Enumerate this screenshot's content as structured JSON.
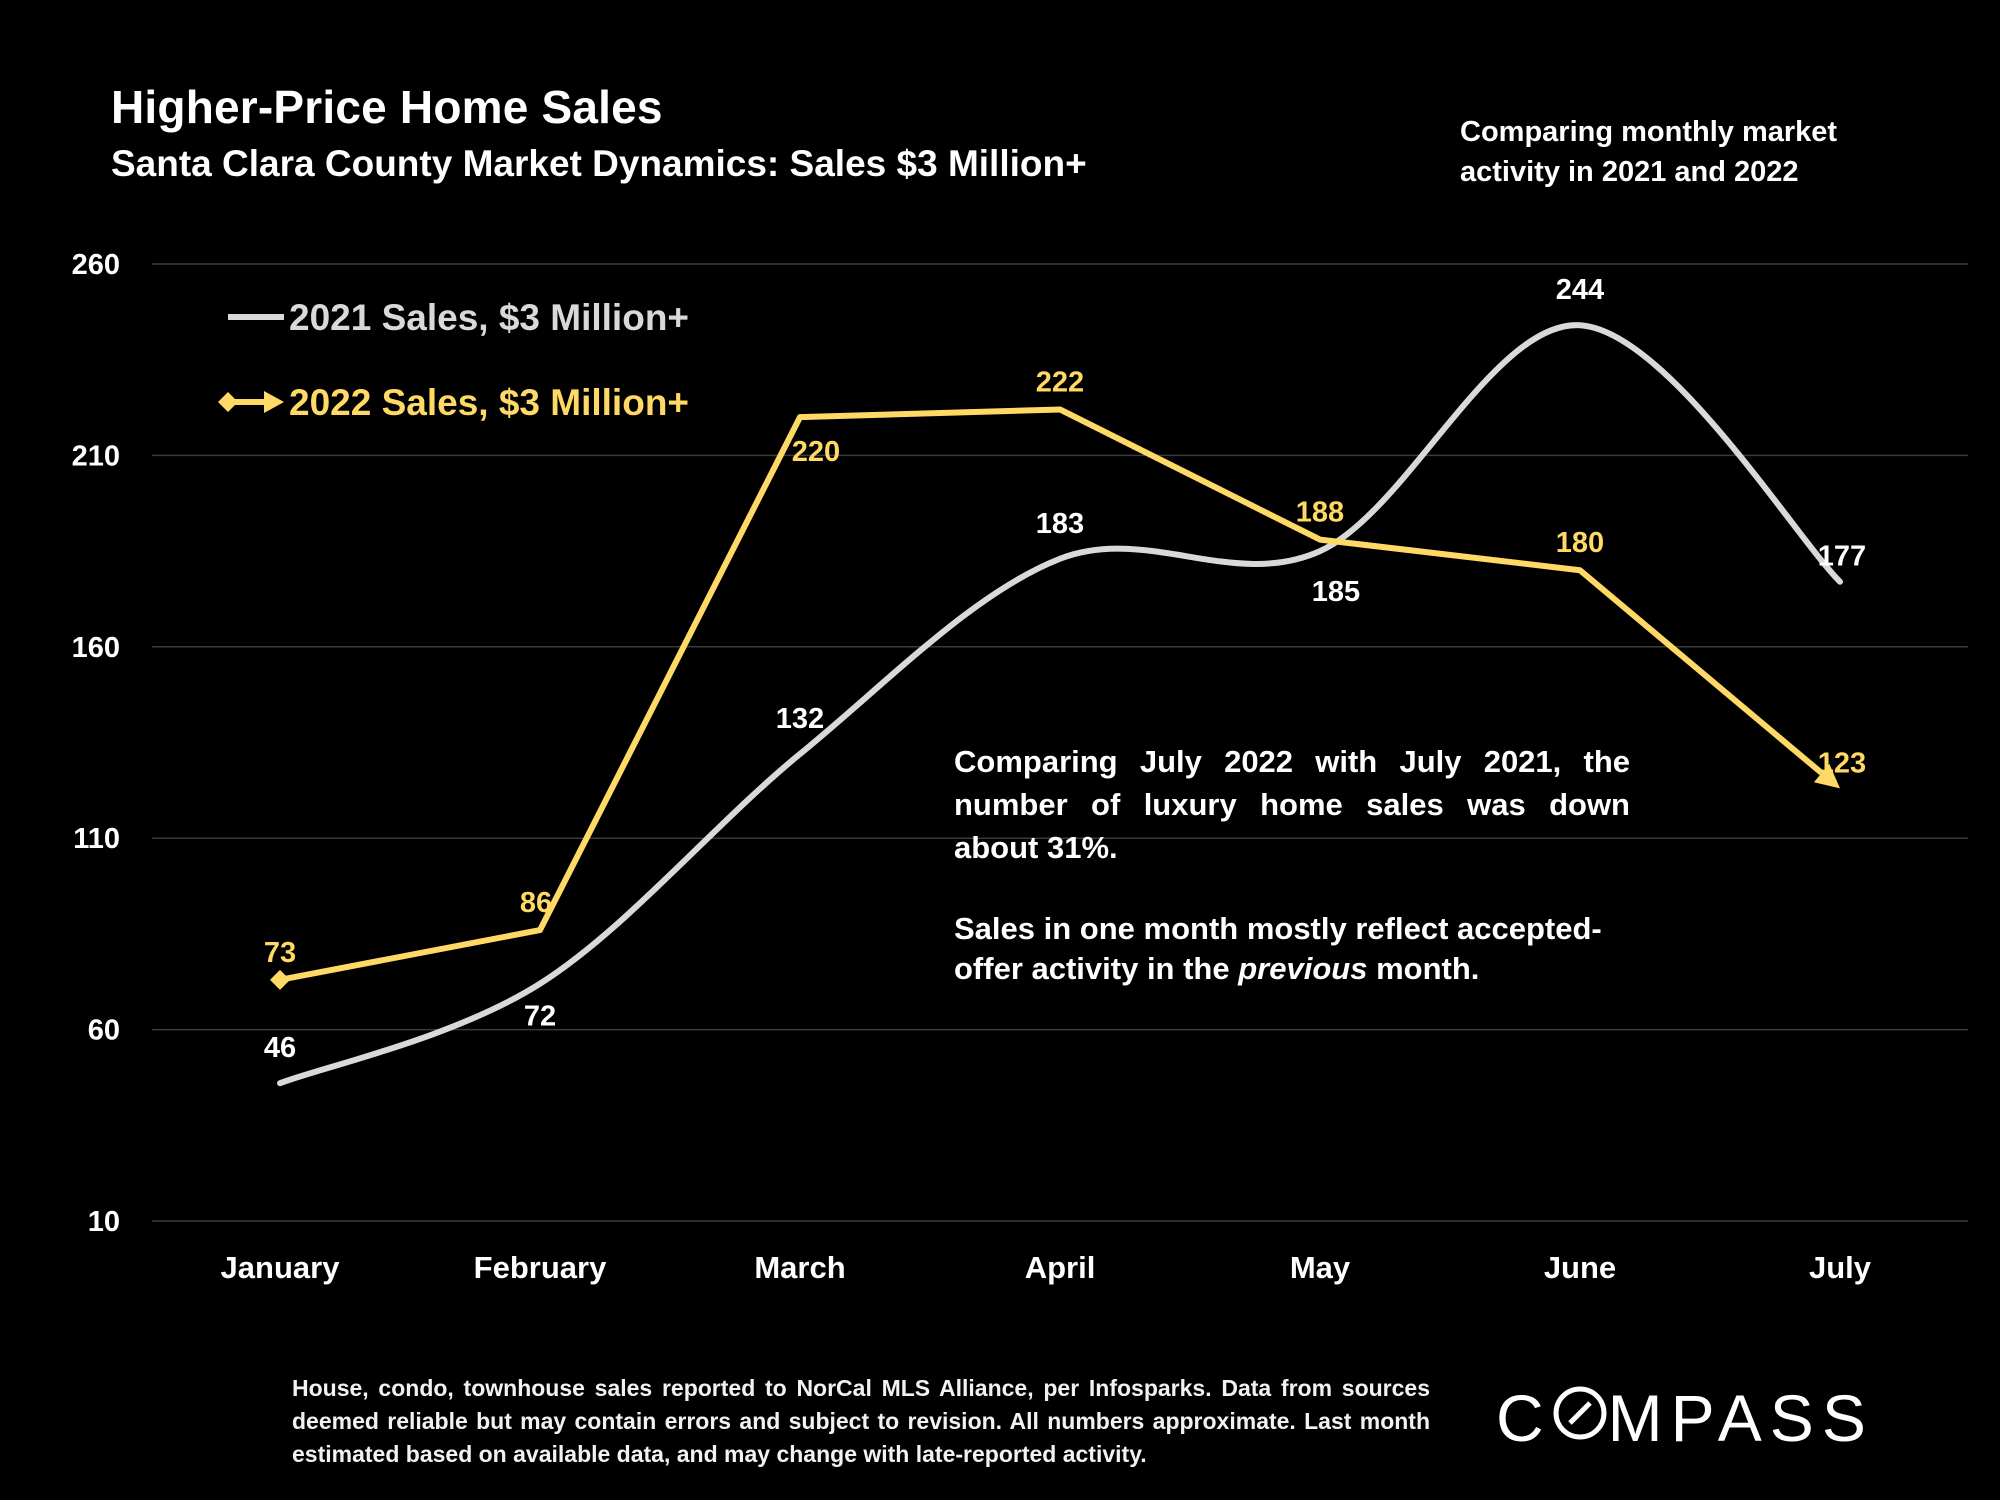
{
  "title": "Higher-Price Home Sales",
  "subtitle": "Santa Clara County Market Dynamics: Sales $3 Million+",
  "side_note": "Comparing monthly market activity in 2021 and 2022",
  "annotation": {
    "p1": "Comparing July 2022 with July 2021, the number of luxury home sales was down about 31%.",
    "p2_before": "Sales in one month mostly reflect accepted-offer activity in the ",
    "p2_em": "previous",
    "p2_after": " month."
  },
  "footnote": "House, condo, townhouse sales reported to NorCal MLS Alliance, per Infosparks. Data from sources deemed reliable but may contain errors and subject to revision. All numbers approximate. Last month estimated based on available data, and may change with late-reported activity.",
  "logo": {
    "text_a": "C",
    "text_b": "MPASS"
  },
  "colors": {
    "s2021": "#d9d9d9",
    "s2022": "#ffd966",
    "grid": "#3a3a3a",
    "text": "#ffffff"
  },
  "chart_data": {
    "type": "line",
    "categories": [
      "January",
      "February",
      "March",
      "April",
      "May",
      "June",
      "July"
    ],
    "ylim": [
      10,
      260
    ],
    "yticks": [
      10,
      60,
      110,
      160,
      210,
      260
    ],
    "grid": true,
    "legend_position": "top-left",
    "series": [
      {
        "name": "2021 Sales, $3 Million+",
        "values": [
          46,
          72,
          132,
          183,
          185,
          244,
          177
        ],
        "smooth": true,
        "marker": "none"
      },
      {
        "name": "2022 Sales, $3 Million+",
        "values": [
          73,
          86,
          220,
          222,
          188,
          180,
          123
        ],
        "smooth": false,
        "marker": "diamond-start-arrow-end"
      }
    ]
  }
}
